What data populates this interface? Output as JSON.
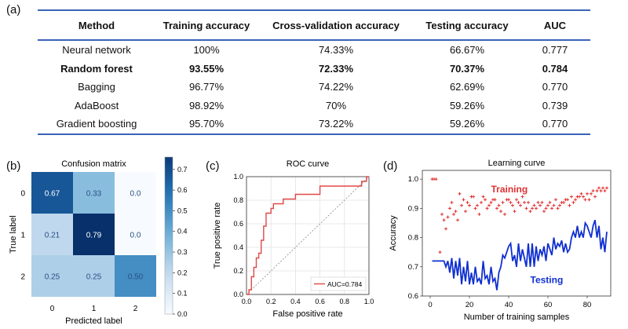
{
  "panel_labels": {
    "a": "(a)",
    "b": "(b)",
    "c": "(c)",
    "d": "(d)"
  },
  "table": {
    "headers": [
      "Method",
      "Training accuracy",
      "Cross-validation accuracy",
      "Testing accuracy",
      "AUC"
    ],
    "rows": [
      [
        "Neural network",
        "100%",
        "74.33%",
        "66.67%",
        "0.777"
      ],
      [
        "Random forest",
        "93.55%",
        "72.33%",
        "70.37%",
        "0.784"
      ],
      [
        "Bagging",
        "96.77%",
        "74.22%",
        "62.69%",
        "0.770"
      ],
      [
        "AdaBoost",
        "98.92%",
        "70%",
        "59.26%",
        "0.739"
      ],
      [
        "Gradient boosting",
        "95.70%",
        "73.22%",
        "59.26%",
        "0.770"
      ]
    ],
    "bold_row": 1,
    "rule_color": "#3a63b8"
  },
  "chart_data": [
    {
      "type": "heatmap",
      "title": "Confusion matrix",
      "xlabel": "Predicted label",
      "ylabel": "True label",
      "xticks": [
        "0",
        "1",
        "2"
      ],
      "yticks": [
        "0",
        "1",
        "2"
      ],
      "values": [
        [
          0.67,
          0.33,
          0.0
        ],
        [
          0.21,
          0.79,
          0.0
        ],
        [
          0.25,
          0.25,
          0.5
        ]
      ],
      "cell_labels": [
        [
          "0.67",
          "0.33",
          "0.0"
        ],
        [
          "0.21",
          "0.79",
          "0.0"
        ],
        [
          "0.25",
          "0.25",
          "0.50"
        ]
      ],
      "colorbar_ticks": [
        "0.7",
        "0.6",
        "0.5",
        "0.4",
        "0.3",
        "0.2",
        "0.1",
        "0.0"
      ],
      "colormap": "Blues"
    },
    {
      "type": "line",
      "title": "ROC curve",
      "xlabel": "False positive rate",
      "ylabel": "True positive rate",
      "xlim": [
        0,
        1
      ],
      "ylim": [
        0,
        1
      ],
      "xticks": [
        "0.0",
        "0.2",
        "0.4",
        "0.6",
        "0.8",
        "1.0"
      ],
      "yticks": [
        "0.0",
        "0.2",
        "0.4",
        "0.6",
        "0.8",
        "1.0"
      ],
      "grid": true,
      "legend_position": "bottom-right",
      "series": [
        {
          "name": "AUC=0.784",
          "color": "#e04848",
          "points": [
            [
              0,
              0
            ],
            [
              0.02,
              0
            ],
            [
              0.02,
              0.04
            ],
            [
              0.04,
              0.04
            ],
            [
              0.04,
              0.15
            ],
            [
              0.06,
              0.15
            ],
            [
              0.06,
              0.23
            ],
            [
              0.08,
              0.23
            ],
            [
              0.08,
              0.31
            ],
            [
              0.1,
              0.31
            ],
            [
              0.1,
              0.35
            ],
            [
              0.12,
              0.35
            ],
            [
              0.12,
              0.46
            ],
            [
              0.14,
              0.46
            ],
            [
              0.14,
              0.58
            ],
            [
              0.16,
              0.58
            ],
            [
              0.16,
              0.69
            ],
            [
              0.2,
              0.69
            ],
            [
              0.2,
              0.73
            ],
            [
              0.22,
              0.73
            ],
            [
              0.22,
              0.77
            ],
            [
              0.3,
              0.77
            ],
            [
              0.3,
              0.81
            ],
            [
              0.4,
              0.81
            ],
            [
              0.4,
              0.85
            ],
            [
              0.6,
              0.85
            ],
            [
              0.6,
              0.92
            ],
            [
              0.94,
              0.92
            ],
            [
              0.94,
              0.96
            ],
            [
              0.98,
              0.96
            ],
            [
              0.98,
              1.0
            ],
            [
              1.0,
              1.0
            ]
          ]
        },
        {
          "name": "",
          "style": "dashed",
          "color": "#888888",
          "points": [
            [
              0,
              0
            ],
            [
              1,
              1
            ]
          ]
        }
      ]
    },
    {
      "type": "line",
      "title": "Learning curve",
      "xlabel": "Number of training samples",
      "ylabel": "Accuracy",
      "xlim": [
        -4,
        92
      ],
      "ylim": [
        0.6,
        1.03
      ],
      "xticks": [
        "0",
        "20",
        "40",
        "60",
        "80"
      ],
      "yticks": [
        "0.6",
        "0.7",
        "0.8",
        "0.9",
        "1.0"
      ],
      "annotations": [
        "Training",
        "Testing"
      ],
      "annotation_colors": [
        "#e03030",
        "#1030d0"
      ],
      "series": [
        {
          "name": "Training",
          "marker": "plus",
          "color": "#e03030",
          "x": [
            1,
            2,
            3,
            5,
            6,
            7,
            8,
            9,
            10,
            11,
            12,
            13,
            14,
            15,
            16,
            17,
            18,
            19,
            20,
            21,
            22,
            23,
            24,
            25,
            26,
            27,
            28,
            29,
            30,
            31,
            32,
            33,
            34,
            35,
            36,
            37,
            38,
            39,
            40,
            41,
            42,
            43,
            44,
            45,
            46,
            47,
            48,
            49,
            50,
            51,
            52,
            53,
            54,
            55,
            56,
            57,
            58,
            59,
            60,
            61,
            62,
            63,
            64,
            65,
            66,
            67,
            68,
            69,
            70,
            71,
            72,
            73,
            74,
            75,
            76,
            77,
            78,
            79,
            80,
            81,
            82,
            83,
            84,
            85,
            86,
            87,
            88,
            89,
            90
          ],
          "y": [
            1.0,
            1.0,
            1.0,
            0.75,
            0.88,
            0.86,
            0.83,
            0.87,
            0.9,
            0.92,
            0.88,
            0.89,
            0.86,
            0.95,
            0.91,
            0.93,
            0.89,
            0.92,
            0.91,
            0.94,
            0.94,
            0.9,
            0.91,
            0.88,
            0.92,
            0.94,
            0.93,
            0.9,
            0.91,
            0.92,
            0.93,
            0.93,
            0.9,
            0.91,
            0.89,
            0.92,
            0.88,
            0.93,
            0.93,
            0.92,
            0.91,
            0.89,
            0.93,
            0.92,
            0.91,
            0.94,
            0.92,
            0.9,
            0.92,
            0.89,
            0.9,
            0.91,
            0.9,
            0.92,
            0.91,
            0.92,
            0.89,
            0.9,
            0.91,
            0.92,
            0.9,
            0.91,
            0.93,
            0.9,
            0.91,
            0.92,
            0.92,
            0.93,
            0.93,
            0.91,
            0.94,
            0.92,
            0.93,
            0.94,
            0.94,
            0.95,
            0.94,
            0.93,
            0.95,
            0.93,
            0.95,
            0.96,
            0.94,
            0.96,
            0.97,
            0.96,
            0.97,
            0.96,
            0.97
          ]
        },
        {
          "name": "Testing",
          "marker": "none",
          "color": "#1030d0",
          "x": [
            1,
            2,
            3,
            4,
            5,
            6,
            7,
            8,
            9,
            10,
            11,
            12,
            13,
            14,
            15,
            16,
            17,
            18,
            19,
            20,
            21,
            22,
            23,
            24,
            25,
            26,
            27,
            28,
            29,
            30,
            31,
            32,
            33,
            34,
            35,
            36,
            37,
            38,
            39,
            40,
            41,
            42,
            43,
            44,
            45,
            46,
            47,
            48,
            49,
            50,
            51,
            52,
            53,
            54,
            55,
            56,
            57,
            58,
            59,
            60,
            61,
            62,
            63,
            64,
            65,
            66,
            67,
            68,
            69,
            70,
            71,
            72,
            73,
            74,
            75,
            76,
            77,
            78,
            79,
            80,
            81,
            82,
            83,
            84,
            85,
            86,
            87,
            88,
            89,
            90
          ],
          "y": [
            0.72,
            0.72,
            0.72,
            0.72,
            0.72,
            0.72,
            0.72,
            0.7,
            0.72,
            0.68,
            0.73,
            0.66,
            0.72,
            0.67,
            0.73,
            0.64,
            0.7,
            0.65,
            0.72,
            0.64,
            0.68,
            0.64,
            0.7,
            0.65,
            0.66,
            0.64,
            0.72,
            0.66,
            0.67,
            0.64,
            0.7,
            0.65,
            0.66,
            0.62,
            0.68,
            0.7,
            0.74,
            0.73,
            0.75,
            0.77,
            0.78,
            0.72,
            0.74,
            0.7,
            0.78,
            0.72,
            0.76,
            0.73,
            0.7,
            0.78,
            0.7,
            0.78,
            0.7,
            0.77,
            0.72,
            0.76,
            0.74,
            0.77,
            0.72,
            0.78,
            0.76,
            0.74,
            0.8,
            0.76,
            0.78,
            0.77,
            0.79,
            0.75,
            0.78,
            0.75,
            0.76,
            0.8,
            0.82,
            0.8,
            0.84,
            0.8,
            0.82,
            0.8,
            0.85,
            0.84,
            0.82,
            0.8,
            0.84,
            0.86,
            0.8,
            0.84,
            0.76,
            0.8,
            0.75,
            0.82
          ]
        }
      ]
    }
  ]
}
